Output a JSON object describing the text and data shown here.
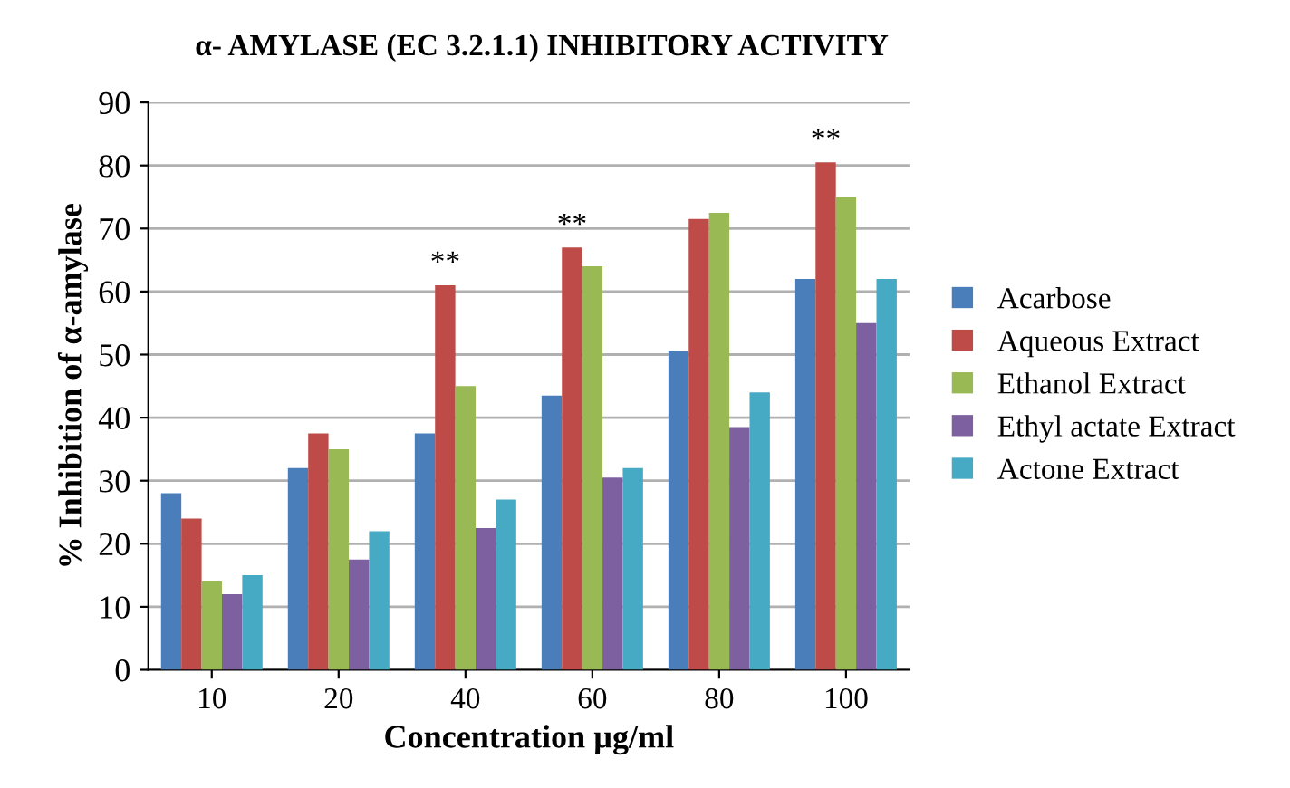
{
  "chart_data": {
    "type": "bar",
    "title": "α- AMYLASE (EC 3.2.1.1) INHIBITORY ACTIVITY",
    "xlabel": "Concentration µg/ml",
    "ylabel": "% Inhibition of α-amylase",
    "categories": [
      "10",
      "20",
      "40",
      "60",
      "80",
      "100"
    ],
    "series": [
      {
        "name": "Acarbose",
        "color": "#4a7ebb",
        "values": [
          28,
          32,
          37.5,
          43.5,
          50.5,
          62
        ]
      },
      {
        "name": "Aqueous Extract",
        "color": "#be4b48",
        "values": [
          24,
          37.5,
          61,
          67,
          71.5,
          80.5
        ]
      },
      {
        "name": "Ethanol Extract",
        "color": "#98b954",
        "values": [
          14,
          35,
          45,
          64,
          72.5,
          75
        ]
      },
      {
        "name": "Ethyl actate Extract",
        "color": "#7d60a0",
        "values": [
          12,
          17.5,
          22.5,
          30.5,
          38.5,
          55
        ]
      },
      {
        "name": "Actone Extract",
        "color": "#46aac5",
        "values": [
          15,
          22,
          27,
          32,
          44,
          62
        ]
      }
    ],
    "ylim": [
      0,
      90
    ],
    "yticks": [
      0,
      10,
      20,
      30,
      40,
      50,
      60,
      70,
      80,
      90
    ],
    "grid": "y",
    "legend": "right",
    "annotations": [
      "**",
      "**",
      "**"
    ]
  }
}
